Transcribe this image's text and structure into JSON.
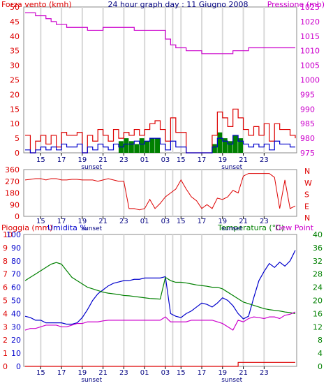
{
  "chart_data": [
    {
      "type": "line",
      "title": "24 hour graph day : 11 Giugno 2008",
      "ylabel_left": "Forza vento (kmh)",
      "ylabel_right": "Pressione (mb)",
      "x_ticks": [
        "15",
        "17",
        "19",
        "21",
        "23",
        "01",
        "03",
        "15",
        "17",
        "19",
        "21",
        "23"
      ],
      "annotations": [
        "sunset",
        "sunset"
      ],
      "y_left_ticks": [
        0,
        5,
        10,
        15,
        20,
        25,
        30,
        35,
        40,
        45,
        50
      ],
      "y_left_lim": [
        0,
        50
      ],
      "y_right_ticks": [
        975,
        980,
        985,
        990,
        995,
        1000,
        1005,
        1010,
        1015,
        1020,
        1025
      ],
      "y_right_lim": [
        975,
        1025
      ],
      "colors": {
        "pressure": "#cc00cc",
        "gust": "#dd0000",
        "wind": "#0000cc",
        "rain": "#008000"
      },
      "series": [
        {
          "key": "pressure",
          "axis": "right",
          "x": [
            0,
            0.5,
            1,
            1.5,
            2,
            2.5,
            3,
            3.5,
            4,
            4.5,
            5,
            5.5,
            6,
            6.5,
            7,
            7.5,
            8,
            8.5,
            9,
            9.5,
            10,
            10.5,
            11,
            11.5,
            12,
            12.5,
            13,
            13.5,
            14,
            14.5,
            15,
            15.5,
            16,
            16.5,
            17,
            17.5,
            18,
            18.5,
            19,
            19.5,
            20,
            20.5,
            21,
            21.5,
            22,
            22.5,
            23,
            23.5,
            24,
            24.5,
            25,
            25.5,
            26
          ],
          "y": [
            1023,
            1023,
            1022,
            1022,
            1021,
            1020,
            1019,
            1019,
            1018,
            1018,
            1018,
            1018,
            1017,
            1017,
            1017,
            1018,
            1018,
            1018,
            1018,
            1018,
            1018,
            1017,
            1017,
            1017,
            1017,
            1017,
            1017,
            1014,
            1012,
            1011,
            1011,
            1010,
            1010,
            1010,
            1009,
            1009,
            1009,
            1009,
            1009,
            1009,
            1010,
            1010,
            1010,
            1011,
            1011,
            1011,
            1011,
            1011,
            1011,
            1011,
            1011,
            1011,
            1011
          ]
        }
      ],
      "bars": [
        {
          "key": "gust",
          "axis": "left",
          "x": [
            0,
            0.5,
            1,
            1.5,
            2,
            2.5,
            3,
            3.5,
            4,
            4.5,
            5,
            5.5,
            6,
            6.5,
            7,
            7.5,
            8,
            8.5,
            9,
            9.5,
            10,
            10.5,
            11,
            11.5,
            12,
            12.5,
            13,
            13.5,
            14,
            14.5,
            15,
            15.5,
            16,
            16.5,
            17,
            17.5,
            18,
            18.5,
            19,
            19.5,
            20,
            20.5,
            21,
            21.5,
            22,
            22.5,
            23,
            23.5,
            24,
            24.5,
            25,
            25.5,
            26
          ],
          "y": [
            6,
            0,
            4,
            6,
            3,
            6,
            2,
            7,
            6,
            6,
            7,
            0,
            6,
            4,
            8,
            6,
            4,
            8,
            5,
            7,
            6,
            8,
            6,
            8,
            10,
            11,
            8,
            4,
            12,
            7,
            7,
            0,
            0,
            0,
            0,
            0,
            6,
            14,
            12,
            9,
            15,
            12,
            8,
            6,
            9,
            6,
            10,
            4,
            10,
            8,
            8,
            6,
            5
          ]
        },
        {
          "key": "wind",
          "axis": "left",
          "x": [
            0,
            0.5,
            1,
            1.5,
            2,
            2.5,
            3,
            3.5,
            4,
            4.5,
            5,
            5.5,
            6,
            6.5,
            7,
            7.5,
            8,
            8.5,
            9,
            9.5,
            10,
            10.5,
            11,
            11.5,
            12,
            12.5,
            13,
            13.5,
            14,
            14.5,
            15,
            15.5,
            16,
            16.5,
            17,
            17.5,
            18,
            18.5,
            19,
            19.5,
            20,
            20.5,
            21,
            21.5,
            22,
            22.5,
            23,
            23.5,
            24,
            24.5,
            25,
            25.5,
            26
          ],
          "y": [
            1,
            0,
            1,
            2,
            1,
            2,
            1,
            3,
            2,
            2,
            3,
            0,
            2,
            1,
            3,
            2,
            1,
            3,
            2,
            3,
            3,
            4,
            3,
            4,
            5,
            5,
            3,
            1,
            4,
            2,
            2,
            0,
            0,
            0,
            0,
            0,
            2,
            5,
            4,
            3,
            6,
            4,
            3,
            2,
            3,
            2,
            3,
            1,
            4,
            3,
            3,
            2,
            2
          ]
        },
        {
          "key": "rain",
          "axis": "left",
          "x": [
            0,
            0.5,
            1,
            1.5,
            2,
            2.5,
            3,
            3.5,
            4,
            4.5,
            5,
            5.5,
            6,
            6.5,
            7,
            7.5,
            8,
            8.5,
            9,
            9.5,
            10,
            10.5,
            11,
            11.5,
            12,
            12.5,
            13,
            13.5,
            14,
            14.5,
            15,
            15.5,
            16,
            16.5,
            17,
            17.5,
            18,
            18.5,
            19,
            19.5,
            20,
            20.5,
            21,
            21.5,
            22,
            22.5,
            23,
            23.5,
            24,
            24.5,
            25,
            25.5,
            26
          ],
          "y": [
            0,
            0,
            0,
            0,
            0,
            0,
            0,
            0,
            0,
            0,
            0,
            0,
            0,
            0,
            0,
            0,
            0,
            0,
            4,
            5,
            4,
            3,
            5,
            4,
            5,
            5,
            0,
            0,
            0,
            0,
            0,
            0,
            0,
            0,
            0,
            0,
            3,
            7,
            5,
            4,
            6,
            5,
            0,
            0,
            0,
            0,
            0,
            0,
            0,
            0,
            0,
            0,
            0
          ]
        }
      ]
    },
    {
      "type": "line",
      "ylabel_right_letters": [
        "N",
        "W",
        "S",
        "E",
        "N"
      ],
      "y_left_ticks": [
        0,
        90,
        180,
        270,
        360
      ],
      "y_left_lim": [
        0,
        360
      ],
      "x_ticks": [
        "15",
        "17",
        "19",
        "21",
        "23",
        "01",
        "03",
        "15",
        "17",
        "19",
        "21",
        "23"
      ],
      "annotations": [
        "sunset",
        "sunset"
      ],
      "colors": {
        "direction": "#dd0000"
      },
      "series": [
        {
          "key": "direction",
          "x": [
            0,
            0.5,
            1,
            1.5,
            2,
            2.5,
            3,
            3.5,
            4,
            4.5,
            5,
            5.5,
            6,
            6.5,
            7,
            7.5,
            8,
            8.5,
            9,
            9.5,
            10,
            10.5,
            11,
            11.5,
            12,
            12.5,
            13,
            13.5,
            14,
            14.5,
            15,
            15.5,
            16,
            16.5,
            17,
            17.5,
            18,
            18.5,
            19,
            19.5,
            20,
            20.5,
            21,
            21.5,
            22,
            22.5,
            23,
            23.5,
            24,
            24.5,
            25,
            25.5,
            26
          ],
          "y": [
            280,
            285,
            290,
            290,
            280,
            290,
            290,
            280,
            280,
            285,
            285,
            280,
            280,
            280,
            270,
            280,
            290,
            280,
            270,
            270,
            60,
            60,
            50,
            60,
            130,
            60,
            100,
            150,
            180,
            210,
            280,
            210,
            150,
            120,
            60,
            90,
            60,
            140,
            130,
            150,
            200,
            180,
            310,
            330,
            330,
            330,
            330,
            330,
            300,
            60,
            280,
            60,
            80
          ]
        }
      ]
    },
    {
      "type": "line",
      "ylabel_left": "Pioggia (mm)",
      "ylabel_left2": "Umidita %",
      "ylabel_right": "Temperatura (°C)",
      "ylabel_right2": "Dew Point",
      "x_ticks": [
        "15",
        "17",
        "19",
        "21",
        "23",
        "01",
        "03",
        "15",
        "17",
        "19",
        "21",
        "23"
      ],
      "annotations": [
        "sunset",
        "sunset"
      ],
      "y_rain_ticks": [
        0,
        1,
        2,
        3,
        4,
        5,
        6,
        7,
        8,
        9,
        10
      ],
      "y_rain_lim": [
        0,
        10
      ],
      "y_hum_ticks": [
        0,
        10,
        20,
        30,
        40,
        50,
        60,
        70,
        80,
        90,
        100
      ],
      "y_hum_lim": [
        0,
        100
      ],
      "y_temp_ticks": [
        0,
        4,
        8,
        12,
        16,
        20,
        24,
        28,
        32,
        36,
        40
      ],
      "y_temp_lim": [
        0,
        40
      ],
      "colors": {
        "humidity": "#0000cc",
        "temperature": "#008000",
        "dewpoint": "#cc00cc",
        "rain": "#dd0000"
      },
      "series": [
        {
          "key": "humidity",
          "axis": "hum",
          "x": [
            0,
            0.5,
            1,
            1.5,
            2,
            2.5,
            3,
            3.5,
            4,
            4.5,
            5,
            5.5,
            6,
            6.5,
            7,
            7.5,
            8,
            8.5,
            9,
            9.5,
            10,
            10.5,
            11,
            11.5,
            12,
            12.5,
            13,
            13.5,
            14,
            14.5,
            15,
            15.5,
            16,
            16.5,
            17,
            17.5,
            18,
            18.5,
            19,
            19.5,
            20,
            20.5,
            21,
            21.5,
            22,
            22.5,
            23,
            23.5,
            24,
            24.5,
            25,
            25.5,
            26
          ],
          "y": [
            38,
            37,
            35,
            35,
            33,
            33,
            33,
            33,
            32,
            32,
            33,
            37,
            43,
            50,
            55,
            58,
            61,
            63,
            64,
            65,
            65,
            66,
            66,
            67,
            67,
            67,
            67,
            68,
            40,
            38,
            37,
            40,
            42,
            45,
            48,
            47,
            45,
            48,
            52,
            50,
            46,
            40,
            36,
            38,
            52,
            65,
            72,
            78,
            75,
            79,
            76,
            80,
            88
          ]
        },
        {
          "key": "temperature",
          "axis": "temp",
          "x": [
            0,
            0.5,
            1,
            1.5,
            2,
            2.5,
            3,
            3.5,
            4,
            4.5,
            5,
            5.5,
            6,
            6.5,
            7,
            7.5,
            8,
            8.5,
            9,
            9.5,
            10,
            10.5,
            11,
            11.5,
            12,
            12.5,
            13,
            13.5,
            14,
            14.5,
            15,
            15.5,
            16,
            16.5,
            17,
            17.5,
            18,
            18.5,
            19,
            19.5,
            20,
            20.5,
            21,
            21.5,
            22,
            22.5,
            23,
            23.5,
            24,
            24.5,
            25,
            25.5,
            26
          ],
          "y": [
            26,
            27,
            28,
            29,
            30,
            31,
            31.5,
            31,
            29,
            27,
            26,
            25,
            24,
            23.5,
            23,
            22.5,
            22.2,
            22,
            21.8,
            21.5,
            21.4,
            21.2,
            21,
            20.8,
            20.6,
            20.5,
            20.4,
            27,
            26,
            25.5,
            25.5,
            25.3,
            25,
            24.7,
            24.5,
            24.3,
            24,
            24,
            23.5,
            22.5,
            21.5,
            20.5,
            19.5,
            19,
            18.5,
            18,
            17.5,
            17.2,
            17,
            16.8,
            16.5,
            16.3,
            16
          ]
        },
        {
          "key": "dewpoint",
          "axis": "temp",
          "x": [
            0,
            0.5,
            1,
            1.5,
            2,
            2.5,
            3,
            3.5,
            4,
            4.5,
            5,
            5.5,
            6,
            6.5,
            7,
            7.5,
            8,
            8.5,
            9,
            9.5,
            10,
            10.5,
            11,
            11.5,
            12,
            12.5,
            13,
            13.5,
            14,
            14.5,
            15,
            15.5,
            16,
            16.5,
            17,
            17.5,
            18,
            18.5,
            19,
            19.5,
            20,
            20.5,
            21,
            21.5,
            22,
            22.5,
            23,
            23.5,
            24,
            24.5,
            25,
            25.5,
            26
          ],
          "y": [
            11,
            11.5,
            11.5,
            12,
            12.5,
            12.5,
            12.5,
            12,
            12,
            12.5,
            13,
            13,
            13.5,
            13.5,
            13.5,
            13.8,
            14,
            14,
            14,
            14,
            14,
            14,
            14,
            14,
            14,
            14,
            14,
            15,
            13.5,
            13.5,
            13.5,
            13.5,
            14,
            14,
            14,
            14,
            14,
            13.5,
            13,
            12,
            11,
            14,
            13.5,
            14.5,
            15,
            14.8,
            14.5,
            15,
            15,
            14.5,
            15.5,
            15.8,
            16.5
          ]
        },
        {
          "key": "rain",
          "axis": "rain",
          "x": [
            0,
            20.5,
            20.5,
            26
          ],
          "y": [
            0,
            0,
            0.3,
            0.3
          ]
        }
      ]
    }
  ]
}
